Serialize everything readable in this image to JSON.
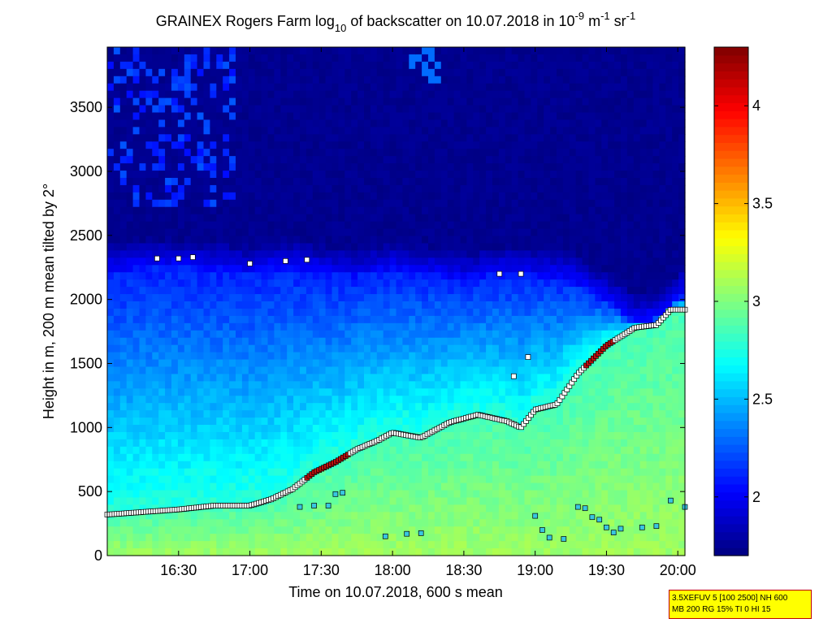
{
  "chart_data": {
    "type": "heatmap",
    "title": {
      "prefix": "GRAINEX Rogers Farm log",
      "log_base": "10",
      "middle": " of backscatter on 10.07.2018 in 10",
      "exp1": "-9",
      "unit1": " m",
      "exp2": "-1",
      "unit2": " sr",
      "exp3": "-1"
    },
    "xlabel": "Time on 10.07.2018, 600 s mean",
    "ylabel": "Height in m, 200 m mean tilted by 2°",
    "x_range_hours": [
      16.0,
      20.05
    ],
    "y_range_m": [
      0,
      3970
    ],
    "x_ticks": [
      {
        "value": 16.5,
        "label": "16:30"
      },
      {
        "value": 17.0,
        "label": "17:00"
      },
      {
        "value": 17.5,
        "label": "17:30"
      },
      {
        "value": 18.0,
        "label": "18:00"
      },
      {
        "value": 18.5,
        "label": "18:30"
      },
      {
        "value": 19.0,
        "label": "19:00"
      },
      {
        "value": 19.5,
        "label": "19:30"
      },
      {
        "value": 20.0,
        "label": "20:00"
      }
    ],
    "y_ticks": [
      {
        "value": 0,
        "label": "0"
      },
      {
        "value": 500,
        "label": "500"
      },
      {
        "value": 1000,
        "label": "1000"
      },
      {
        "value": 1500,
        "label": "1500"
      },
      {
        "value": 2000,
        "label": "2000"
      },
      {
        "value": 2500,
        "label": "2500"
      },
      {
        "value": 3000,
        "label": "3000"
      },
      {
        "value": 3500,
        "label": "3500"
      }
    ],
    "colorbar": {
      "range": [
        1.7,
        4.3
      ],
      "ticks": [
        {
          "value": 2,
          "label": "2"
        },
        {
          "value": 2.5,
          "label": "2.5"
        },
        {
          "value": 3,
          "label": "3"
        },
        {
          "value": 3.5,
          "label": "3.5"
        },
        {
          "value": 4,
          "label": "4"
        }
      ]
    },
    "mixing_layer_height": [
      [
        16.0,
        320
      ],
      [
        16.25,
        340
      ],
      [
        16.5,
        360
      ],
      [
        16.75,
        390
      ],
      [
        17.0,
        390
      ],
      [
        17.15,
        440
      ],
      [
        17.3,
        520
      ],
      [
        17.45,
        650
      ],
      [
        17.6,
        730
      ],
      [
        17.75,
        830
      ],
      [
        17.9,
        900
      ],
      [
        18.0,
        960
      ],
      [
        18.2,
        920
      ],
      [
        18.4,
        1040
      ],
      [
        18.6,
        1100
      ],
      [
        18.8,
        1050
      ],
      [
        18.9,
        1000
      ],
      [
        19.0,
        1140
      ],
      [
        19.15,
        1180
      ],
      [
        19.3,
        1420
      ],
      [
        19.5,
        1640
      ],
      [
        19.7,
        1780
      ],
      [
        19.85,
        1800
      ],
      [
        19.95,
        1920
      ],
      [
        20.05,
        1920
      ]
    ],
    "aerosol_layer_top": [
      [
        16.0,
        2200
      ],
      [
        16.25,
        2250
      ],
      [
        16.5,
        2250
      ],
      [
        16.75,
        2230
      ],
      [
        17.0,
        2200
      ],
      [
        17.25,
        2250
      ],
      [
        17.5,
        2200
      ],
      [
        17.75,
        2180
      ],
      [
        18.0,
        2220
      ],
      [
        18.25,
        2200
      ],
      [
        18.5,
        2150
      ],
      [
        18.75,
        2200
      ],
      [
        19.0,
        2180
      ],
      [
        19.25,
        2150
      ],
      [
        19.5,
        2000
      ],
      [
        19.7,
        1820
      ],
      [
        19.85,
        1850
      ],
      [
        19.95,
        1940
      ],
      [
        20.05,
        2050
      ]
    ],
    "surface_layer_points": [
      [
        17.35,
        380
      ],
      [
        17.45,
        390
      ],
      [
        17.55,
        390
      ],
      [
        17.6,
        480
      ],
      [
        17.65,
        490
      ],
      [
        17.95,
        150
      ],
      [
        18.1,
        170
      ],
      [
        18.2,
        175
      ],
      [
        19.0,
        310
      ],
      [
        19.05,
        200
      ],
      [
        19.1,
        140
      ],
      [
        19.2,
        130
      ],
      [
        19.3,
        380
      ],
      [
        19.35,
        370
      ],
      [
        19.4,
        300
      ],
      [
        19.45,
        280
      ],
      [
        19.5,
        220
      ],
      [
        19.55,
        180
      ],
      [
        19.6,
        210
      ],
      [
        19.75,
        220
      ],
      [
        19.85,
        230
      ],
      [
        19.95,
        430
      ],
      [
        20.05,
        380
      ]
    ],
    "upper_points": [
      [
        16.35,
        2320
      ],
      [
        16.5,
        2320
      ],
      [
        16.6,
        2330
      ],
      [
        17.0,
        2280
      ],
      [
        17.25,
        2300
      ],
      [
        17.4,
        2310
      ],
      [
        18.75,
        2200
      ],
      [
        18.9,
        2200
      ],
      [
        18.85,
        1400
      ],
      [
        18.95,
        1550
      ]
    ],
    "info_box": {
      "line1": "3.5XEFUV 5 [100 2500] NH 600",
      "line2": "MB 200 RG 15% TI 0 HI 15"
    }
  }
}
